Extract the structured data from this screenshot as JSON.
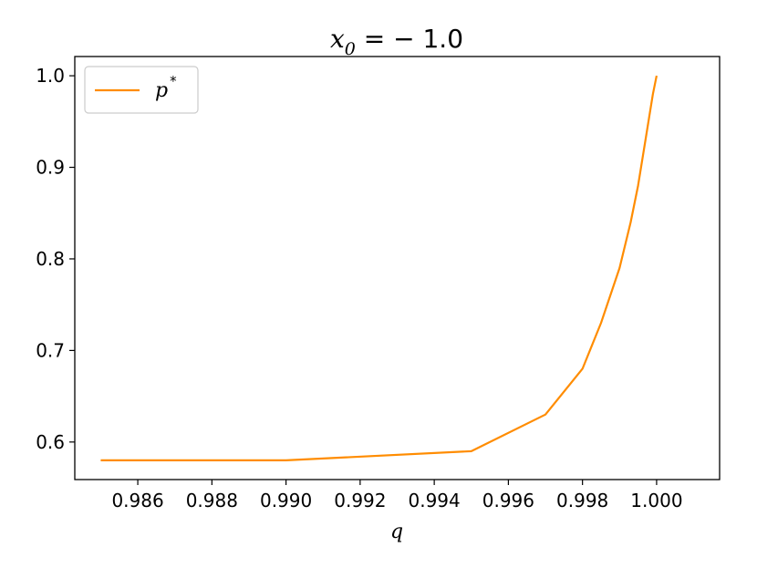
{
  "chart_data": {
    "type": "line",
    "title": {
      "var": "x",
      "sub": "0",
      "eq": " = − 1.0"
    },
    "xlabel": "q",
    "ylabel": "",
    "xlim": [
      0.9843,
      1.0017
    ],
    "ylim": [
      0.559,
      1.021
    ],
    "x_ticks": [
      0.986,
      0.988,
      0.99,
      0.992,
      0.994,
      0.996,
      0.998,
      1.0
    ],
    "x_tick_labels": [
      "0.986",
      "0.988",
      "0.990",
      "0.992",
      "0.994",
      "0.996",
      "0.998",
      "1.000"
    ],
    "y_ticks": [
      0.6,
      0.7,
      0.8,
      0.9,
      1.0
    ],
    "y_tick_labels": [
      "0.6",
      "0.7",
      "0.8",
      "0.9",
      "1.0"
    ],
    "grid": false,
    "legend": {
      "position": "top-left",
      "entries": [
        {
          "base": "p",
          "sup": "*"
        }
      ]
    },
    "series": [
      {
        "name": "p*",
        "color": "#ff8c00",
        "x": [
          0.985,
          0.99,
          0.995,
          0.997,
          0.998,
          0.9985,
          0.999,
          0.9993,
          0.9995,
          0.9997,
          0.9999,
          1.0
        ],
        "y": [
          0.58,
          0.58,
          0.59,
          0.63,
          0.68,
          0.73,
          0.79,
          0.84,
          0.88,
          0.93,
          0.98,
          1.0
        ]
      }
    ]
  }
}
